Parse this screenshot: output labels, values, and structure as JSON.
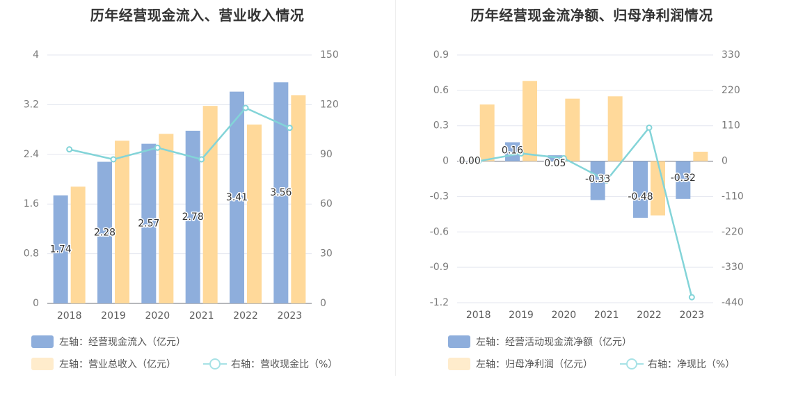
{
  "colors": {
    "primary_bar": "#8eaedc",
    "secondary_bar": "#ffd99a",
    "secondary_legend": "#ffeccc",
    "line": "#83d4d8",
    "line_legend": "#a7e2e6",
    "grid": "#e3e6ef",
    "axis": "#6e7079"
  },
  "chart_data": [
    {
      "type": "bar",
      "title": "历年经营现金流入、营业收入情况",
      "categories": [
        "2018",
        "2019",
        "2020",
        "2021",
        "2022",
        "2023"
      ],
      "left_axis": {
        "ylim": [
          0,
          4
        ],
        "ticks": [
          "0",
          "0.8",
          "1.6",
          "2.4",
          "3.2",
          "4"
        ]
      },
      "right_axis": {
        "ylim": [
          0,
          150
        ],
        "ticks": [
          "0",
          "30",
          "60",
          "90",
          "120",
          "150"
        ]
      },
      "series": [
        {
          "name": "左轴：经营现金流入（亿元）",
          "type": "bar",
          "axis": "left",
          "color": "#8eaedc",
          "values": [
            1.74,
            2.28,
            2.57,
            2.78,
            3.41,
            3.56
          ],
          "labels": [
            "1.74",
            "2.28",
            "2.57",
            "2.78",
            "3.41",
            "3.56"
          ]
        },
        {
          "name": "左轴：营业总收入（亿元）",
          "type": "bar",
          "axis": "left",
          "color": "#ffd99a",
          "values": [
            1.88,
            2.62,
            2.73,
            3.18,
            2.88,
            3.35
          ]
        },
        {
          "name": "右轴：营收现金比（%）",
          "type": "line",
          "axis": "right",
          "color": "#83d4d8",
          "values": [
            93,
            87,
            94,
            87,
            118,
            106
          ]
        }
      ]
    },
    {
      "type": "bar",
      "title": "历年经营现金流净额、归母净利润情况",
      "categories": [
        "2018",
        "2019",
        "2020",
        "2021",
        "2022",
        "2023"
      ],
      "left_axis": {
        "ylim": [
          -1.2,
          0.9
        ],
        "ticks": [
          "-1.2",
          "-0.9",
          "-0.6",
          "-0.3",
          "0",
          "0.3",
          "0.6",
          "0.9"
        ]
      },
      "right_axis": {
        "ylim": [
          -440,
          330
        ],
        "ticks": [
          "-440",
          "-330",
          "-220",
          "-110",
          "0",
          "110",
          "220",
          "330"
        ]
      },
      "series": [
        {
          "name": "左轴：经营活动现金流净额（亿元）",
          "type": "bar",
          "axis": "left",
          "color": "#8eaedc",
          "values": [
            0.0,
            0.16,
            0.05,
            -0.33,
            -0.48,
            -0.32
          ],
          "labels": [
            "0.00",
            "0.16",
            "0.05",
            "-0.33",
            "-0.48",
            "-0.32"
          ]
        },
        {
          "name": "左轴：归母净利润（亿元）",
          "type": "bar",
          "axis": "left",
          "color": "#ffd99a",
          "values": [
            0.48,
            0.68,
            0.53,
            0.55,
            -0.46,
            0.08
          ]
        },
        {
          "name": "右轴：净现比（%）",
          "type": "line",
          "axis": "right",
          "color": "#83d4d8",
          "values": [
            0,
            24,
            9,
            -60,
            104,
            -423
          ]
        }
      ]
    }
  ]
}
